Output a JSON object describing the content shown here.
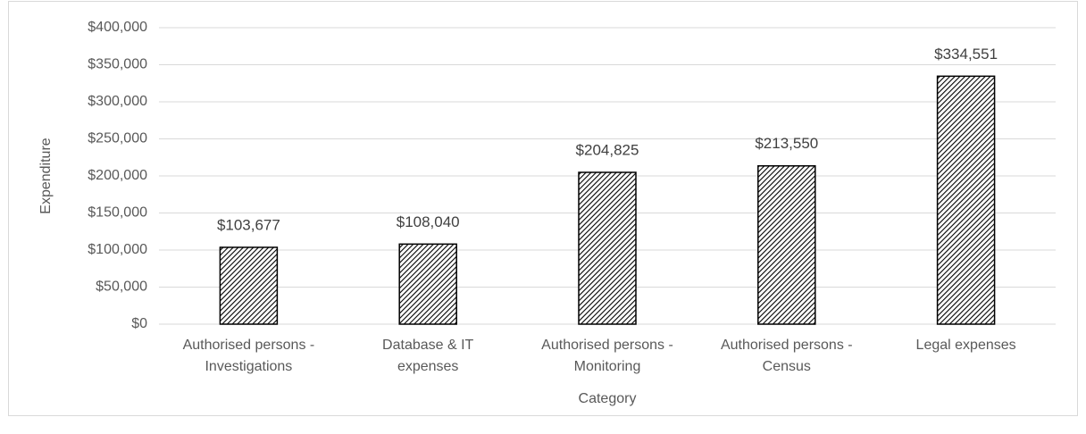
{
  "chart_data": {
    "type": "bar",
    "x_label": "Category",
    "y_label": "Expenditure",
    "categories": [
      [
        "Authorised persons -",
        "Investigations"
      ],
      [
        "Database & IT",
        "expenses"
      ],
      [
        "Authorised persons -",
        "Monitoring"
      ],
      [
        "Authorised persons -",
        "Census"
      ],
      [
        "Legal expenses"
      ]
    ],
    "values": [
      103677,
      108040,
      204825,
      213550,
      334551
    ],
    "value_labels": [
      "$103,677",
      "$108,040",
      "$204,825",
      "$213,550",
      "$334,551"
    ],
    "color": "#000000",
    "ylim": [
      0,
      400000
    ],
    "yticks": [
      {
        "value": 0,
        "label": "$0"
      },
      {
        "value": 50000,
        "label": "$50,000"
      },
      {
        "value": 100000,
        "label": "$100,000"
      },
      {
        "value": 150000,
        "label": "$150,000"
      },
      {
        "value": 200000,
        "label": "$200,000"
      },
      {
        "value": 250000,
        "label": "$250,000"
      },
      {
        "value": 300000,
        "label": "$300,000"
      },
      {
        "value": 350000,
        "label": "$350,000"
      },
      {
        "value": 400000,
        "label": "$400,000"
      }
    ],
    "grid": true
  }
}
